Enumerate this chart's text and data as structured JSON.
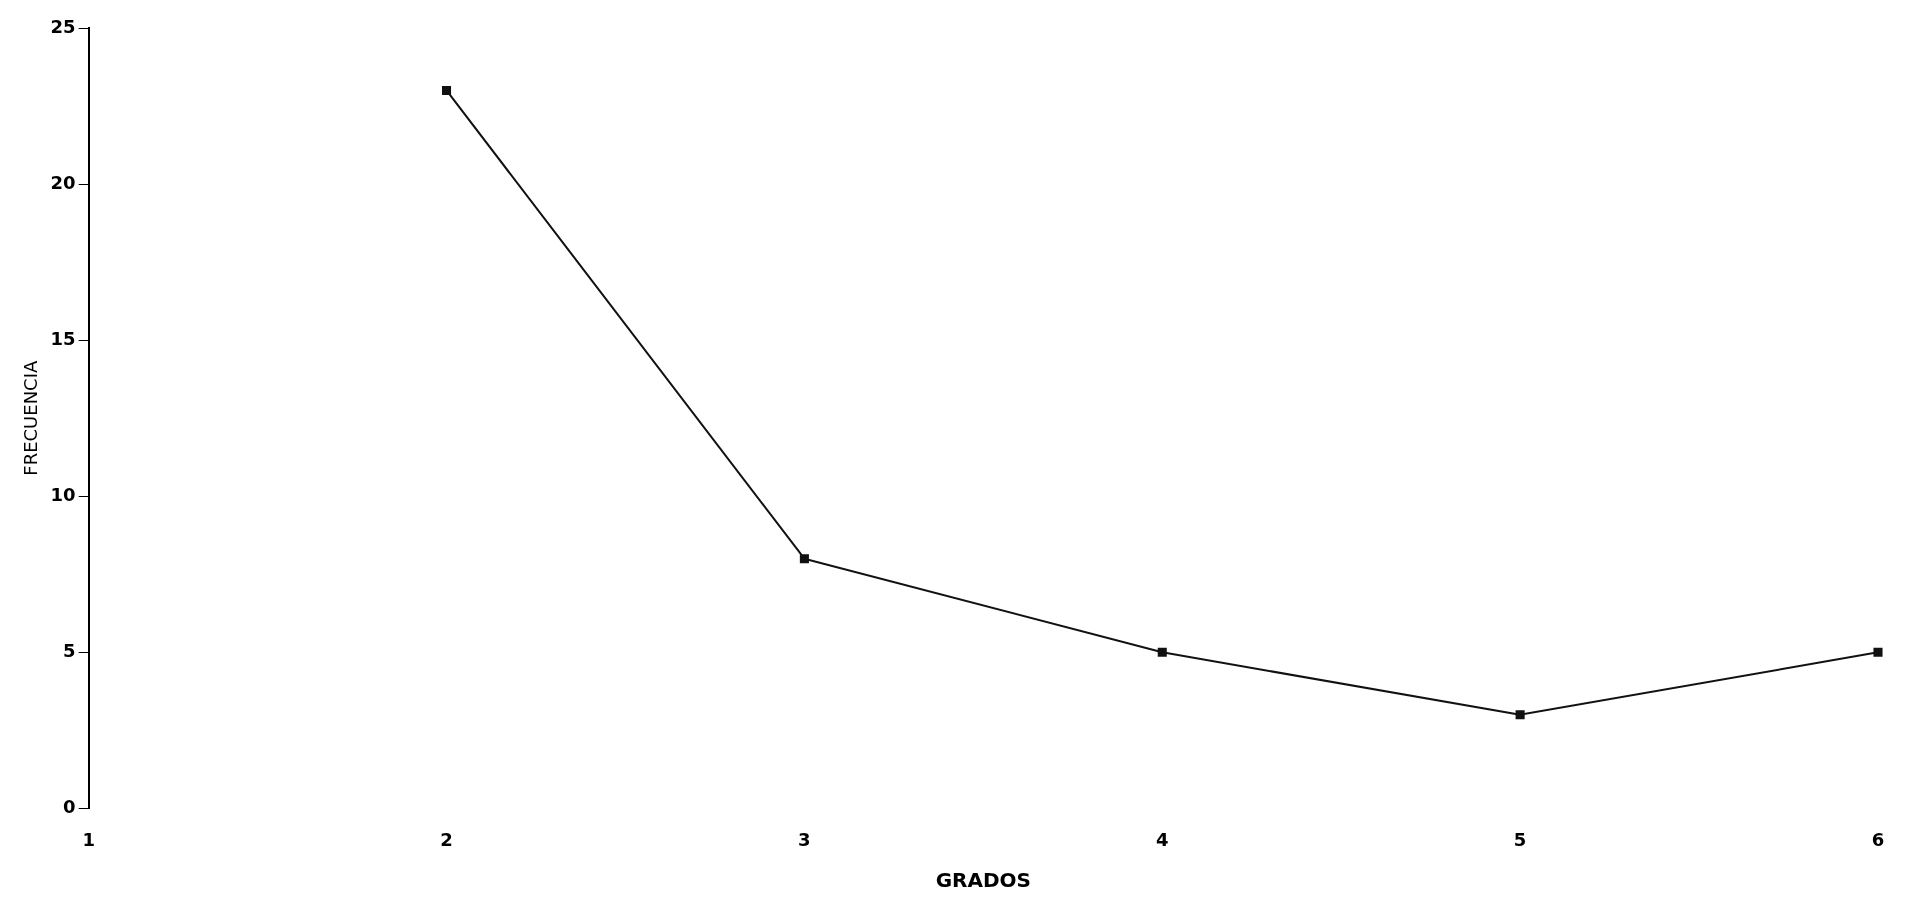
{
  "chart_data": {
    "type": "line",
    "xlabel": "GRADOS",
    "ylabel": "FRECUENCIA",
    "categories": [
      "1",
      "2",
      "3",
      "4",
      "5",
      "6"
    ],
    "series": [
      {
        "color": "#111111",
        "values": [
          null,
          23,
          8,
          5,
          3,
          5
        ]
      }
    ],
    "ylim": [
      0,
      25
    ],
    "yticks": [
      0,
      5,
      10,
      15,
      20,
      25
    ],
    "grid": false,
    "legend": false,
    "marker": "square",
    "line_style": "solid"
  }
}
